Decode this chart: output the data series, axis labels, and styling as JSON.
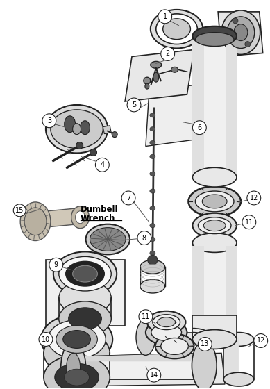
{
  "bg_color": "#ffffff",
  "fig_width": 3.89,
  "fig_height": 5.6,
  "dpi": 100,
  "line_color": "#222222",
  "label_bg": "#ffffff",
  "label_edge": "#222222",
  "gray_light": "#e8e8e8",
  "gray_mid": "#bbbbbb",
  "gray_dark": "#666666",
  "gray_fill": "#cccccc",
  "black": "#111111"
}
